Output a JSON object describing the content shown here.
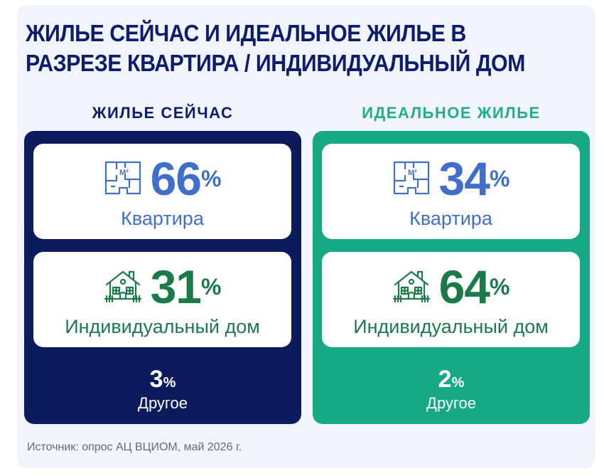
{
  "title": "ЖИЛЬЕ СЕЙЧАС И ИДЕАЛЬНОЕ ЖИЛЬЕ В РАЗРЕЗЕ КВАРТИРА / ИНДИВИДУАЛЬНЫЙ ДОМ",
  "colors": {
    "navy": "#0b1b5c",
    "teal": "#17a884",
    "apartment_blue": "#3f6fc9",
    "house_green": "#1a7a4a"
  },
  "columns": [
    {
      "heading": "ЖИЛЬЕ СЕЙЧАС",
      "apartment": {
        "icon": "apartment-plan-icon",
        "value": "66",
        "unit": "%",
        "label": "Квартира"
      },
      "house": {
        "icon": "house-icon",
        "value": "31",
        "unit": "%",
        "label": "Индивидуальный дом"
      },
      "other": {
        "value": "3",
        "unit": "%",
        "label": "Другое"
      }
    },
    {
      "heading": "ИДЕАЛЬНОЕ ЖИЛЬЕ",
      "apartment": {
        "icon": "apartment-plan-icon",
        "value": "34",
        "unit": "%",
        "label": "Квартира"
      },
      "house": {
        "icon": "house-icon",
        "value": "64",
        "unit": "%",
        "label": "Индивидуальный дом"
      },
      "other": {
        "value": "2",
        "unit": "%",
        "label": "Другое"
      }
    }
  ],
  "source": "Источник: опрос АЦ ВЦИОМ, май 2026 г."
}
